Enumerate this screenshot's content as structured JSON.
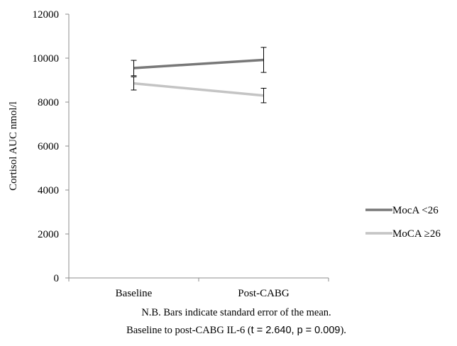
{
  "chart_data": {
    "type": "line",
    "title": "",
    "xlabel": "",
    "ylabel": "Cortisol AUC nmol/l",
    "categories": [
      "Baseline",
      "Post-CABG"
    ],
    "ylim": [
      0,
      12000
    ],
    "yticks": [
      0,
      2000,
      4000,
      6000,
      8000,
      10000,
      12000
    ],
    "grid": false,
    "legend_position": "right",
    "series": [
      {
        "name": "MocA <26",
        "color": "#787878",
        "values": [
          9550,
          9920
        ],
        "errors": [
          350,
          570
        ]
      },
      {
        "name": "MoCA ≥26",
        "color": "#c4c4c4",
        "values": [
          8850,
          8300
        ],
        "errors": [
          300,
          330
        ]
      }
    ]
  },
  "caption": {
    "line1": "N.B. Bars indicate standard error of the mean.",
    "line2_prefix": "Baseline to post-CABG IL-6 (",
    "line2_t": "t = 2.640, p = 0.009",
    "line2_suffix": ")."
  }
}
